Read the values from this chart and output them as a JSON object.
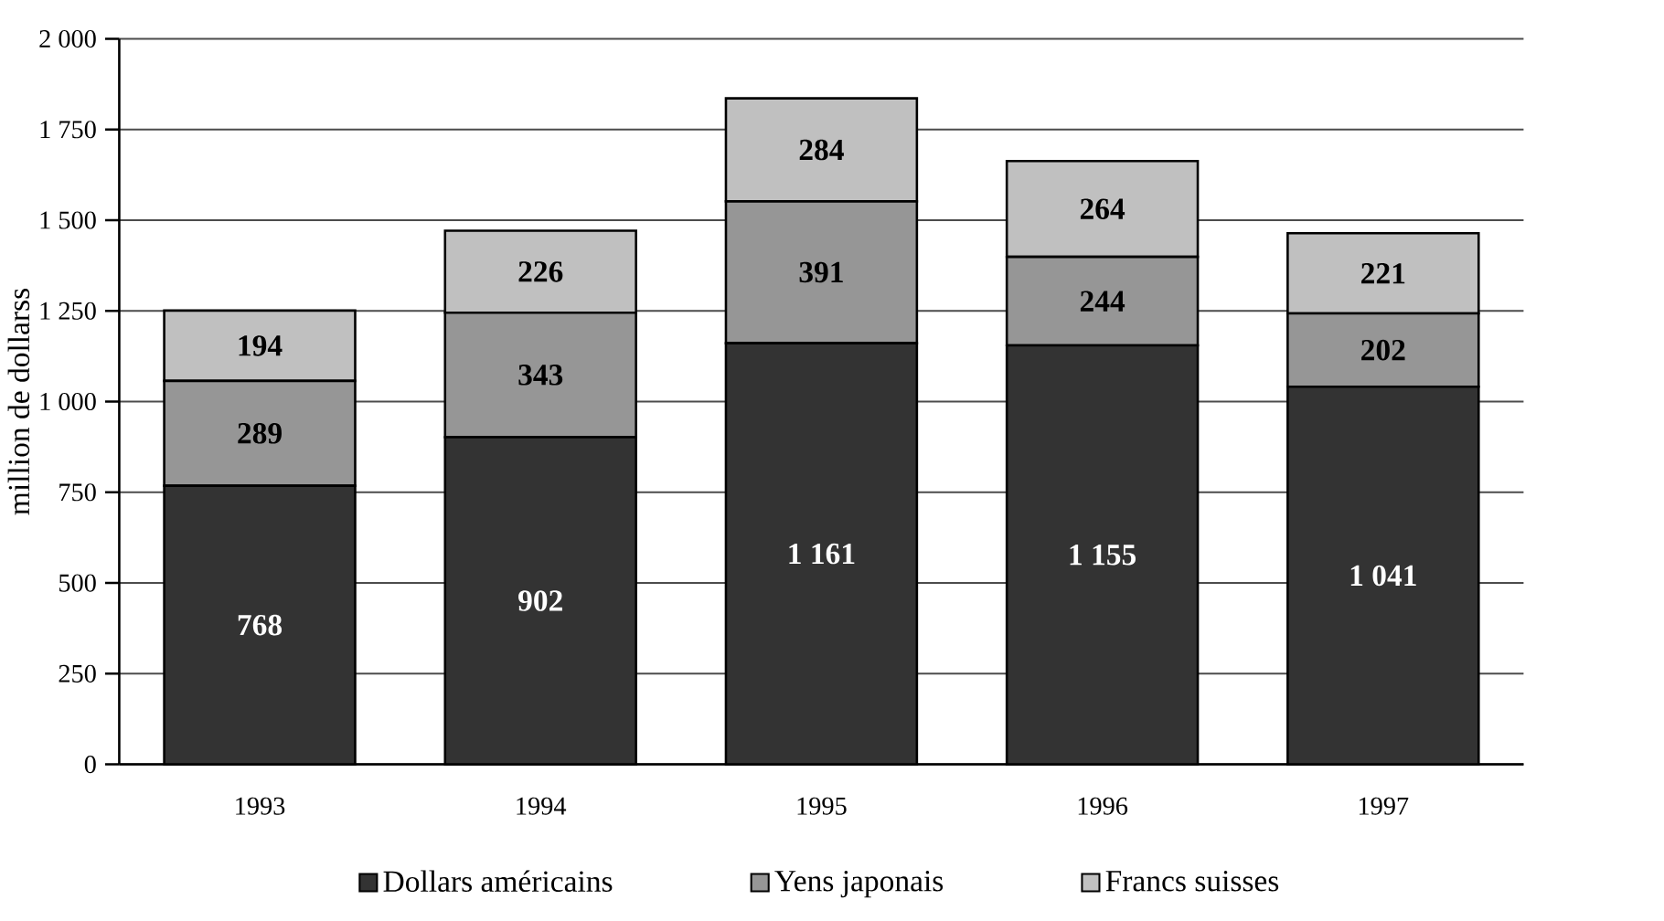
{
  "chart_data": {
    "type": "bar",
    "stacked": true,
    "ylabel": "million de dollarss",
    "categories": [
      "1993",
      "1994",
      "1995",
      "1996",
      "1997"
    ],
    "series": [
      {
        "name": "Dollars américains",
        "color": "#333333",
        "values": [
          768,
          902,
          1161,
          1155,
          1041
        ],
        "value_labels": [
          "768",
          "902",
          "1 161",
          "1 155",
          "1 041"
        ]
      },
      {
        "name": "Yens japonais",
        "color": "#969696",
        "values": [
          289,
          343,
          391,
          244,
          202
        ],
        "value_labels": [
          "289",
          "343",
          "391",
          "244",
          "202"
        ]
      },
      {
        "name": "Francs suisses",
        "color": "#c0c0c0",
        "values": [
          194,
          226,
          284,
          264,
          221
        ],
        "value_labels": [
          "194",
          "226",
          "284",
          "264",
          "221"
        ]
      }
    ],
    "ylim": [
      0,
      2000
    ],
    "yticks": [
      0,
      250,
      500,
      750,
      {
        "value": 1000,
        "label": "1 000"
      },
      {
        "value": 1250,
        "label": "1 250"
      },
      {
        "value": 1500,
        "label": "1 500"
      },
      {
        "value": 1750,
        "label": "1 750"
      },
      {
        "value": 2000,
        "label": "2 000"
      }
    ],
    "grid": "y",
    "legend": "bottom"
  }
}
